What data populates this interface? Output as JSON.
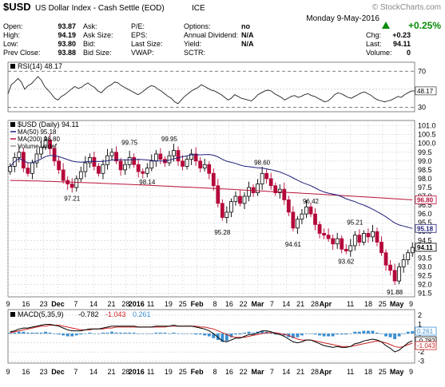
{
  "header": {
    "symbol": "$USD",
    "name": "US Dollar Index - Cash Settle (EOD)",
    "exchange": "ICE",
    "watermark": "© StockCharts.com",
    "date": "Monday  9-May-2016",
    "change_pct": "+0.25%",
    "fields": [
      {
        "label": "Open:",
        "value": "93.87"
      },
      {
        "label": "High:",
        "value": "94.19"
      },
      {
        "label": "Low:",
        "value": "93.80"
      },
      {
        "label": "Prev Close:",
        "value": "93.88"
      }
    ],
    "fields2": [
      "Ask:",
      "Ask Size:",
      "Bid:",
      "Bid Size:"
    ],
    "fields3": [
      "P/E:",
      "EPS:",
      "Last Size:",
      "VWAP:"
    ],
    "fields4": [
      {
        "label": "Options:",
        "value": "no"
      },
      {
        "label": "Annual Dividend:",
        "value": "N/A"
      },
      {
        "label": "Yield:",
        "value": "N/A"
      },
      {
        "label": "SCTR:",
        "value": ""
      }
    ],
    "fields5": [
      {
        "label": "Chg:",
        "value": "+0.23"
      },
      {
        "label": "Last:",
        "value": "94.11"
      },
      {
        "label": "Volume:",
        "value": "0"
      }
    ]
  },
  "colors": {
    "up": "#000000",
    "down": "#b5083a",
    "ma50": "#1f1f7a",
    "ma200": "#b8123a",
    "macd": "#000000",
    "signal": "#cc2222",
    "hist": "#3b8fd1",
    "rsi": "#222222"
  },
  "chart_data": [
    {
      "type": "line",
      "panel": "rsi",
      "legend": "RSI(14) 48.17",
      "yticks": [
        30,
        50,
        70
      ],
      "ylim": [
        25,
        80
      ],
      "reference_lines": [
        30,
        70
      ],
      "last_label": "48.17",
      "values": [
        45,
        55,
        58,
        62,
        58,
        50,
        54,
        56,
        60,
        64,
        60,
        53,
        49,
        45,
        40,
        38,
        42,
        44,
        47,
        50,
        53,
        51,
        52,
        55,
        57,
        54,
        52,
        48,
        46,
        50,
        53,
        55,
        58,
        57,
        54,
        52,
        50,
        48,
        46,
        44,
        46,
        49,
        52,
        54,
        53,
        50,
        48,
        45,
        42,
        40,
        36,
        34,
        38,
        42,
        45,
        48,
        50,
        52,
        55,
        53,
        51,
        49,
        48,
        46,
        44,
        41,
        38,
        40,
        44,
        42,
        40,
        39,
        38,
        37,
        40,
        44,
        46,
        48,
        49,
        48,
        45,
        43,
        41,
        38,
        40,
        42,
        43,
        41,
        42,
        44,
        45,
        43,
        42,
        40,
        38,
        36,
        37,
        40,
        44,
        46,
        45,
        43,
        41,
        40,
        42,
        44,
        46,
        47,
        45,
        43,
        40,
        38,
        37,
        36,
        37,
        38,
        40,
        42,
        41,
        44,
        46,
        48,
        48.17
      ]
    },
    {
      "type": "candlestick",
      "panel": "price",
      "legend": [
        "$USD (Daily) 94.11",
        "MA(50) 95.18",
        "MA(200) 96.80",
        "Volume undef"
      ],
      "ylim": [
        91.3,
        101.3
      ],
      "yticks": [
        91.5,
        92.0,
        92.5,
        93.0,
        93.5,
        94.0,
        94.5,
        95.0,
        95.5,
        96.0,
        96.5,
        97.0,
        97.5,
        98.0,
        98.5,
        99.0,
        99.5,
        100.0,
        100.5,
        101.0
      ],
      "ytick_labels": [
        "91.5",
        "92.0",
        "92.5",
        "93.0",
        "93.5",
        "94.0",
        "94.5",
        "95.0",
        "95.5",
        "96.0",
        "96.5",
        "97.0",
        "97.5",
        "98.0",
        "98.5",
        "99.0",
        "99.5",
        "100.0",
        "100.5",
        "101.0"
      ],
      "last_labels": {
        "ma200": "96.80",
        "ma50": "95.18",
        "close": "94.11"
      },
      "annotations": [
        {
          "text": "99.75",
          "index": 27
        },
        {
          "text": "99.95",
          "index": 36
        },
        {
          "text": "97.21",
          "index": 14
        },
        {
          "text": "98.14",
          "index": 31
        },
        {
          "text": "98.60",
          "index": 57
        },
        {
          "text": "95.28",
          "index": 48
        },
        {
          "text": "96.42",
          "index": 68
        },
        {
          "text": "94.61",
          "index": 64
        },
        {
          "text": "95.21",
          "index": 78
        },
        {
          "text": "93.62",
          "index": 76
        },
        {
          "text": "91.88",
          "index": 87
        }
      ],
      "closes": [
        98.7,
        99.2,
        99.5,
        98.6,
        98.3,
        98.9,
        99.4,
        99.8,
        100.2,
        99.7,
        99.0,
        98.5,
        97.9,
        97.7,
        97.5,
        98.0,
        98.4,
        98.9,
        99.2,
        98.7,
        98.3,
        98.8,
        99.3,
        99.5,
        99.0,
        98.5,
        98.8,
        99.2,
        98.8,
        98.4,
        98.3,
        98.6,
        99.0,
        99.4,
        99.1,
        98.9,
        99.3,
        99.6,
        99.0,
        98.7,
        99.1,
        99.4,
        99.0,
        98.6,
        98.8,
        98.3,
        97.6,
        96.6,
        95.8,
        96.1,
        96.7,
        97.0,
        96.6,
        97.0,
        97.5,
        97.2,
        97.7,
        98.3,
        98.0,
        97.6,
        97.2,
        97.4,
        96.8,
        96.1,
        95.2,
        95.7,
        96.0,
        96.4,
        96.0,
        95.4,
        94.9,
        94.8,
        94.6,
        94.3,
        94.6,
        94.0,
        93.9,
        94.2,
        94.8,
        94.4,
        94.9,
        94.7,
        95.0,
        94.4,
        93.8,
        93.1,
        92.8,
        92.2,
        93.0,
        93.4,
        93.8,
        94.1
      ]
    },
    {
      "type": "line",
      "panel": "macd",
      "legend": [
        "MACD(5,35,9)",
        "-0.782",
        "-1.043",
        "0.261"
      ],
      "ylim": [
        -3.2,
        2.6
      ],
      "yticks": [
        -3,
        -2,
        -1,
        0,
        1,
        2
      ],
      "last_labels": {
        "hist": "0.261",
        "macd": "-0.782",
        "signal": "-1.043"
      },
      "macd": [
        0.2,
        0.3,
        0.5,
        0.6,
        0.6,
        0.7,
        0.8,
        0.9,
        1.0,
        1.0,
        0.9,
        0.8,
        0.6,
        0.4,
        0.3,
        0.3,
        0.3,
        0.4,
        0.5,
        0.5,
        0.5,
        0.6,
        0.7,
        0.8,
        0.8,
        0.8,
        0.8,
        0.8,
        0.8,
        0.7,
        0.7,
        0.7,
        0.7,
        0.8,
        0.8,
        0.8,
        0.8,
        0.9,
        0.8,
        0.8,
        0.8,
        0.8,
        0.7,
        0.6,
        0.5,
        0.3,
        0.0,
        -0.4,
        -0.8,
        -0.9,
        -0.7,
        -0.5,
        -0.5,
        -0.3,
        -0.1,
        -0.1,
        0.1,
        0.3,
        0.3,
        0.2,
        0.0,
        -0.1,
        -0.3,
        -0.6,
        -0.9,
        -1.0,
        -0.9,
        -0.7,
        -0.7,
        -0.9,
        -1.1,
        -1.3,
        -1.4,
        -1.5,
        -1.4,
        -1.5,
        -1.5,
        -1.4,
        -1.1,
        -1.0,
        -0.8,
        -0.7,
        -0.6,
        -0.7,
        -0.9,
        -1.3,
        -1.6,
        -2.0,
        -1.8,
        -1.4,
        -1.0,
        -0.782
      ],
      "signal": [
        0.1,
        0.2,
        0.3,
        0.4,
        0.5,
        0.6,
        0.7,
        0.8,
        0.8,
        0.9,
        0.9,
        0.9,
        0.8,
        0.7,
        0.6,
        0.5,
        0.4,
        0.4,
        0.4,
        0.5,
        0.5,
        0.5,
        0.6,
        0.6,
        0.7,
        0.7,
        0.7,
        0.7,
        0.7,
        0.7,
        0.7,
        0.7,
        0.7,
        0.7,
        0.7,
        0.7,
        0.8,
        0.8,
        0.8,
        0.8,
        0.8,
        0.8,
        0.8,
        0.7,
        0.7,
        0.6,
        0.5,
        0.3,
        0.1,
        -0.1,
        -0.3,
        -0.4,
        -0.4,
        -0.4,
        -0.3,
        -0.2,
        -0.1,
        0.0,
        0.1,
        0.1,
        0.1,
        0.0,
        -0.1,
        -0.2,
        -0.4,
        -0.6,
        -0.7,
        -0.7,
        -0.7,
        -0.8,
        -0.9,
        -1.0,
        -1.1,
        -1.2,
        -1.3,
        -1.4,
        -1.4,
        -1.4,
        -1.3,
        -1.2,
        -1.1,
        -1.0,
        -0.9,
        -0.8,
        -0.9,
        -1.0,
        -1.2,
        -1.4,
        -1.5,
        -1.4,
        -1.2,
        -1.043
      ]
    },
    {
      "type": "axis",
      "x_labels": [
        {
          "text": "9",
          "index": 0
        },
        {
          "text": "16",
          "index": 5
        },
        {
          "text": "23",
          "index": 10
        },
        {
          "text": "Dec",
          "index": 14
        },
        {
          "text": "7",
          "index": 19
        },
        {
          "text": "14",
          "index": 24
        },
        {
          "text": "21",
          "index": 29
        },
        {
          "text": "28",
          "index": 33
        },
        {
          "text": "2016",
          "index": 36
        },
        {
          "text": "11",
          "index": 40
        },
        {
          "text": "19",
          "index": 45
        },
        {
          "text": "25",
          "index": 49
        },
        {
          "text": "Feb",
          "index": 53
        },
        {
          "text": "8",
          "index": 58
        },
        {
          "text": "16",
          "index": 62
        },
        {
          "text": "22",
          "index": 66
        },
        {
          "text": "Mar",
          "index": 70
        },
        {
          "text": "7",
          "index": 74
        },
        {
          "text": "14",
          "index": 78
        },
        {
          "text": "21",
          "index": 82
        },
        {
          "text": "28",
          "index": 86
        },
        {
          "text": "Apr",
          "index": 89
        },
        {
          "text": "11",
          "index": 96
        },
        {
          "text": "18",
          "index": 101
        },
        {
          "text": "25",
          "index": 105
        },
        {
          "text": "May",
          "index": 109
        },
        {
          "text": "9",
          "index": 113
        }
      ]
    }
  ]
}
